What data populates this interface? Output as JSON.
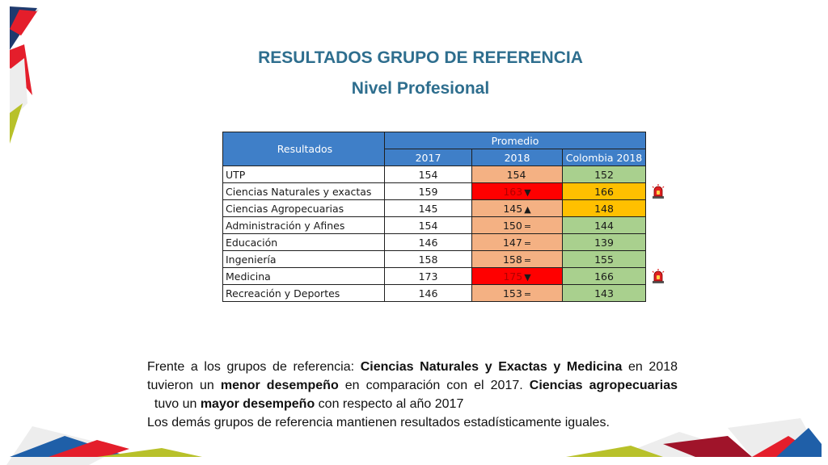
{
  "title": "RESULTADOS GRUPO DE REFERENCIA",
  "subtitle": "Nivel Profesional",
  "table": {
    "header_results": "Resultados",
    "header_group": "Promedio",
    "columns": [
      "2017",
      "2018",
      "Colombia 2018"
    ],
    "rows": [
      {
        "label": "UTP",
        "y2017": "154",
        "y2018": "154",
        "mark": "",
        "col": "152",
        "c2018": "#F4B183",
        "ccol": "#A9D08E",
        "alert": false
      },
      {
        "label": "Ciencias Naturales y exactas",
        "y2017": "159",
        "y2018": "163",
        "mark": "▼",
        "col": "166",
        "c2018": "#FF0000",
        "ccol": "#FFC000",
        "alert": true
      },
      {
        "label": "Ciencias Agropecuarias",
        "y2017": "145",
        "y2018": "145",
        "mark": "▲",
        "col": "148",
        "c2018": "#F4B183",
        "ccol": "#FFC000",
        "alert": false
      },
      {
        "label": "Administración y Afines",
        "y2017": "154",
        "y2018": "150",
        "mark": "=",
        "col": "144",
        "c2018": "#F4B183",
        "ccol": "#A9D08E",
        "alert": false
      },
      {
        "label": "Educación",
        "y2017": "146",
        "y2018": "147",
        "mark": "=",
        "col": "139",
        "c2018": "#F4B183",
        "ccol": "#A9D08E",
        "alert": false
      },
      {
        "label": "Ingeniería",
        "y2017": "158",
        "y2018": "158",
        "mark": "=",
        "col": "155",
        "c2018": "#F4B183",
        "ccol": "#A9D08E",
        "alert": false
      },
      {
        "label": "Medicina",
        "y2017": "173",
        "y2018": "175",
        "mark": "▼",
        "col": "166",
        "c2018": "#FF0000",
        "ccol": "#A9D08E",
        "alert": true
      },
      {
        "label": "Recreación y Deportes",
        "y2017": "146",
        "y2018": "153",
        "mark": "=",
        "col": "143",
        "c2018": "#F4B183",
        "ccol": "#A9D08E",
        "alert": false
      }
    ]
  },
  "paragraph": {
    "p1_a": "Frente a los grupos de referencia: ",
    "p1_b": "Ciencias Naturales y Exactas y Medicina",
    "p1_c": " en 2018 tuvieron un ",
    "p1_d": "menor desempeño",
    "p1_e": " en comparación con el 2017. ",
    "p1_f": "Ciencias agropecuarias",
    "p1_g": "  tuvo un ",
    "p1_h": "mayor desempeño",
    "p1_i": " con respecto al año 2017",
    "p2": "Los demás grupos de referencia mantienen resultados estadísticamente iguales."
  },
  "colors": {
    "title": "#2E6E8E",
    "header": "#3F7FC8",
    "red": "#FF0000",
    "orange": "#F4B183",
    "yellow": "#FFC000",
    "green": "#A9D08E"
  },
  "icons": {
    "alert": "alarm-siren-icon"
  }
}
